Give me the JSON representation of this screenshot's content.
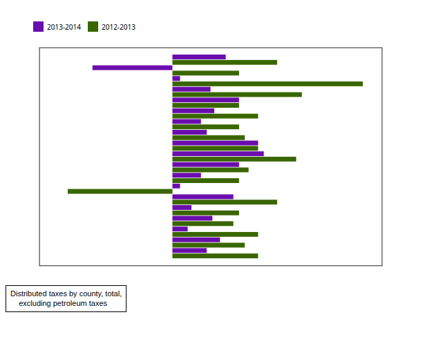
{
  "chart_data": {
    "type": "bar",
    "orientation": "horizontal",
    "categories": [
      null,
      null,
      null,
      null,
      null,
      null,
      null,
      null,
      null,
      null,
      null,
      null,
      null,
      null,
      null,
      null,
      null,
      null,
      null
    ],
    "series": [
      {
        "name": "2013-2014",
        "color": "#6a0dad",
        "values": [
          2.8,
          -4.2,
          0.4,
          2.0,
          3.5,
          2.2,
          1.5,
          1.8,
          4.5,
          4.8,
          3.5,
          1.5,
          0.4,
          3.2,
          1.0,
          2.1,
          0.8,
          2.5,
          1.8
        ]
      },
      {
        "name": "2012-2013",
        "color": "#3a6600",
        "values": [
          5.5,
          3.5,
          10.0,
          6.8,
          3.5,
          4.5,
          3.5,
          3.8,
          4.5,
          6.5,
          4.0,
          3.5,
          -5.5,
          5.5,
          3.5,
          3.2,
          4.5,
          3.8,
          4.5
        ]
      }
    ],
    "xlim": [
      -7,
      11
    ],
    "xticks": [],
    "grid": false,
    "tick_labels": false,
    "legend": "upper left",
    "annotations": [
      "Distributed taxes by county, total,",
      "    excluding petroleum taxes"
    ]
  }
}
